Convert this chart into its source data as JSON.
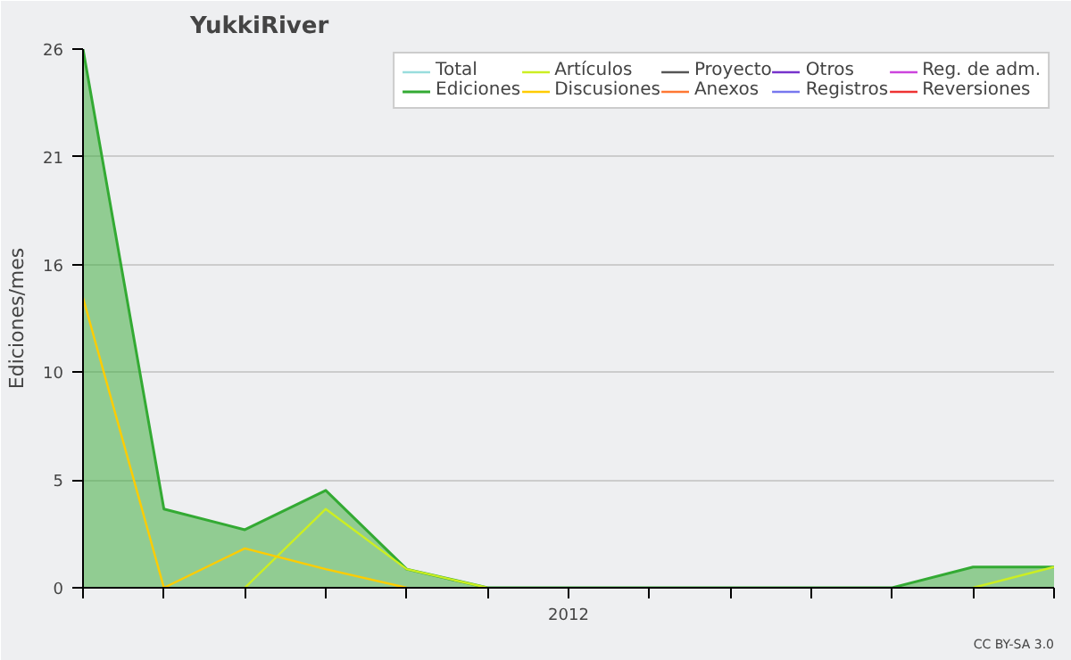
{
  "chart_data": {
    "type": "line",
    "title": "YukkiRiver",
    "ylabel": "Ediciones/mes",
    "categories": [
      null,
      null,
      null,
      null,
      null,
      null,
      "2012",
      null,
      null,
      null,
      null,
      null,
      null
    ],
    "series": [
      {
        "name": "Total",
        "color": "#99dddd",
        "values": [
          null,
          null,
          null,
          null,
          null,
          null,
          null,
          null,
          null,
          null,
          null,
          null,
          null
        ]
      },
      {
        "name": "Ediciones",
        "color": "#33aa33",
        "type": "area",
        "values": [
          26,
          3.8,
          2.8,
          4.7,
          0.9,
          0,
          0,
          0,
          0,
          0,
          0,
          1,
          1
        ]
      },
      {
        "name": "Artículos",
        "color": "#ccee22",
        "values": [
          null,
          null,
          0,
          3.8,
          0.9,
          0,
          null,
          null,
          null,
          null,
          null,
          0,
          1
        ]
      },
      {
        "name": "Discusiones",
        "color": "#ffcc00",
        "values": [
          14,
          0,
          1.9,
          0.9,
          0,
          null,
          null,
          null,
          null,
          null,
          null,
          null,
          null
        ]
      },
      {
        "name": "Proyecto",
        "color": "#555555",
        "values": [
          null,
          null,
          null,
          null,
          null,
          null,
          null,
          null,
          null,
          null,
          null,
          null,
          null
        ]
      },
      {
        "name": "Anexos",
        "color": "#ff7733",
        "values": [
          null,
          null,
          null,
          null,
          null,
          null,
          null,
          null,
          null,
          null,
          null,
          null,
          null
        ]
      },
      {
        "name": "Otros",
        "color": "#7733cc",
        "values": [
          null,
          null,
          null,
          null,
          null,
          null,
          null,
          null,
          null,
          null,
          null,
          null,
          null
        ]
      },
      {
        "name": "Registros",
        "color": "#7777ee",
        "values": [
          null,
          null,
          null,
          null,
          null,
          null,
          null,
          null,
          null,
          null,
          null,
          null,
          null
        ]
      },
      {
        "name": "Reg. de adm.",
        "color": "#cc44dd",
        "values": [
          null,
          null,
          null,
          null,
          null,
          null,
          null,
          null,
          null,
          null,
          null,
          null,
          null
        ]
      },
      {
        "name": "Reversiones",
        "color": "#ee3333",
        "values": [
          null,
          null,
          null,
          null,
          null,
          null,
          null,
          null,
          null,
          null,
          null,
          null,
          null
        ]
      }
    ],
    "ylim": [
      0,
      26
    ],
    "yticks": [
      0,
      {
        "value": 5.2,
        "label": "5"
      },
      {
        "value": 10.4,
        "label": "10"
      },
      {
        "value": 15.6,
        "label": "16"
      },
      {
        "value": 20.8,
        "label": "21"
      },
      26
    ],
    "grid": "y",
    "legend": "top right",
    "annotations": [
      "CC BY-SA 3.0"
    ]
  }
}
